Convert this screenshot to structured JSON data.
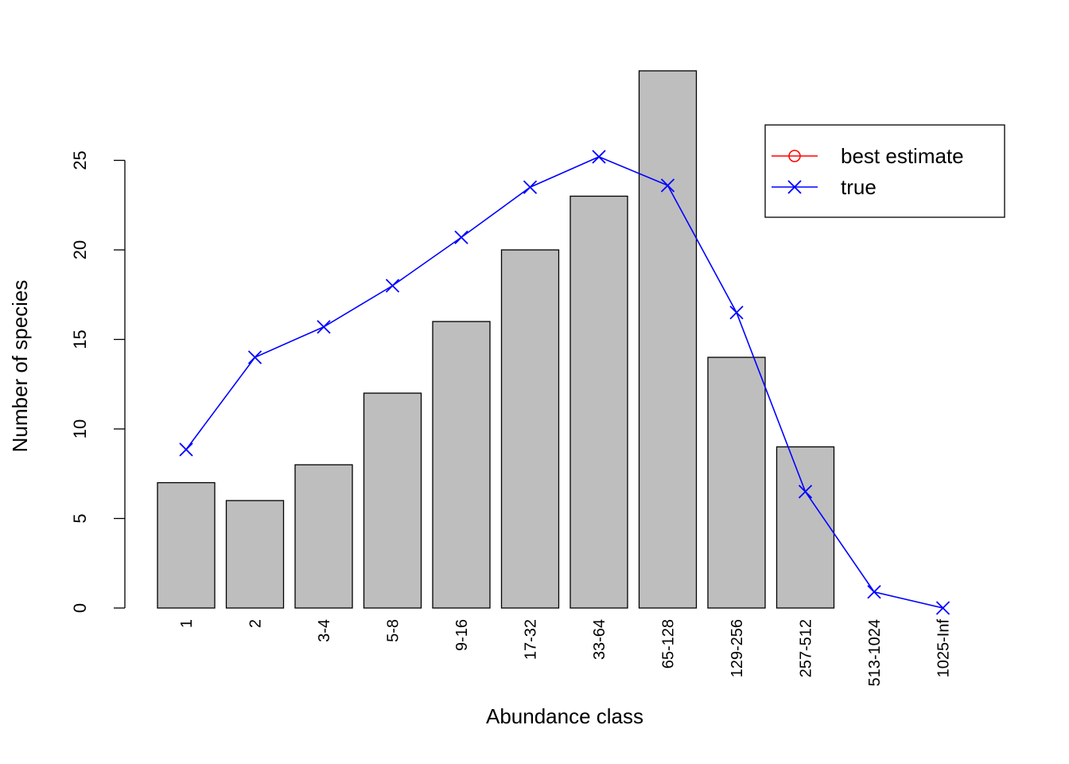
{
  "chart_data": {
    "type": "bar",
    "x_label": "Abundance class",
    "y_label": "Number of species",
    "categories": [
      "1",
      "2",
      "3-4",
      "5-8",
      "9-16",
      "17-32",
      "33-64",
      "65-128",
      "129-256",
      "257-512",
      "513-1024",
      "1025-Inf"
    ],
    "values": [
      7,
      6,
      8,
      12,
      16,
      20,
      23,
      30,
      14,
      9,
      0,
      0
    ],
    "color": "#bebebe",
    "series": [
      {
        "name": "best estimate",
        "color": "#ff0000",
        "marker": "circle",
        "values": [
          null,
          null,
          null,
          null,
          null,
          null,
          null,
          null,
          null,
          null,
          null,
          null
        ]
      },
      {
        "name": "true",
        "color": "#0000ff",
        "marker": "x",
        "values": [
          8.85,
          14.0,
          15.7,
          18.0,
          20.7,
          23.5,
          25.2,
          23.6,
          16.5,
          6.5,
          0.9,
          0.0
        ]
      }
    ],
    "ylim": [
      0,
      30
    ],
    "yticks": [
      0,
      5,
      10,
      15,
      20,
      25
    ],
    "legend": "topright"
  }
}
